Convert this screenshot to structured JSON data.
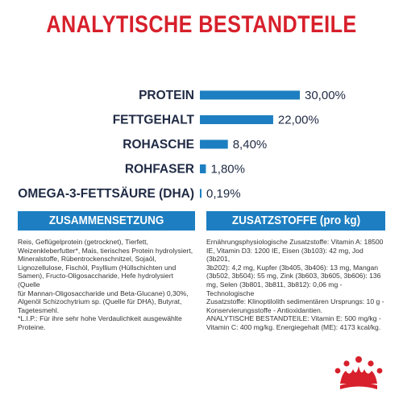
{
  "header": {
    "title": "ANALYTISCHE BESTANDTEILE"
  },
  "colors": {
    "title_red": "#d7202b",
    "bar_blue": "#1d7fc1",
    "text_dark": "#1f2a44"
  },
  "chart_data": {
    "type": "bar",
    "orientation": "horizontal",
    "title": "",
    "categories": [
      "PROTEIN",
      "FETTGEHALT",
      "ROHASCHE",
      "ROHFASER",
      "OMEGA-3-FETTSÄURE (DHA)"
    ],
    "values": [
      30.0,
      22.0,
      8.4,
      1.8,
      0.19
    ],
    "value_labels": [
      "30,00%",
      "22,00%",
      "8,40%",
      "1,80%",
      "0,19%"
    ],
    "xlim": [
      0,
      30
    ],
    "grid": false,
    "legend": "none"
  },
  "sections": {
    "composition": {
      "heading": "ZUSAMMENSETZUNG",
      "lines": [
        "Reis, Geflügelprotein (getrocknet), Tierfett,",
        "Weizenkleberfutter*, Mais, tierisches Protein hydrolysiert,",
        "Mineralstoffe, Rübentrockenschnitzel, Sojaöl,",
        "Lignozellulose, Fischöl, Psyllium (Hüllschichten und",
        "Samen), Fructo-Oligosaccharide, Hefe hydrolysiert (Quelle",
        "für Mannan-Oligosaccharide und Beta-Glucane) 0,30%,",
        "Algenöl Schizochytrium sp. (Quelle für DHA), Butyrat,",
        "Tagetesmehl.",
        "*L.I.P.: Für ihre sehr hohe Verdaulichkeit ausgewählte",
        "Proteine."
      ]
    },
    "additives": {
      "heading": "ZUSATZSTOFFE (pro kg)",
      "lines": [
        "Ernährungsphysiologische Zusatzstoffe: Vitamin A: 18500",
        "IE, Vitamin D3: 1200 IE, Eisen (3b103): 42 mg, Jod (3b201,",
        "3b202): 4,2 mg, Kupfer (3b405, 3b406): 13 mg, Mangan",
        "(3b502, 3b504): 55 mg, Zink (3b603, 3b605, 3b606): 136",
        "mg, Selen (3b801, 3b811, 3b812): 0,06 mg - Technologische",
        "Zusatzstoffe: Klinoptilolith sedimentären Ursprungs: 10 g -",
        "Konservierungsstoffe - Antioxidantien.",
        "ANALYTISCHE BESTANDTEILE: Vitamin E: 500 mg/kg -",
        "Vitamin C: 400 mg/kg. Energiegehalt (ME): 4173 kcal/kg."
      ]
    }
  },
  "logo": {
    "icon": "crown-icon"
  }
}
